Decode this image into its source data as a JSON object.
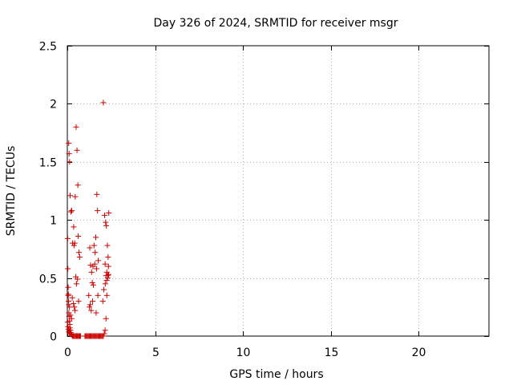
{
  "chart_data": {
    "type": "scatter",
    "title": "Day 326 of 2024, SRMTID for receiver msgr",
    "xlabel": "GPS time / hours",
    "ylabel": "SRMTID / TECUs",
    "xlim": [
      0,
      24
    ],
    "ylim": [
      0,
      2.5
    ],
    "xticks": [
      0,
      5,
      10,
      15,
      20
    ],
    "yticks": [
      0,
      0.5,
      1,
      1.5,
      2,
      2.5
    ],
    "xtick_labels": [
      "0",
      "5",
      "10",
      "15",
      "20"
    ],
    "ytick_labels": [
      "0",
      "0.5",
      "1",
      "1.5",
      "2",
      "2.5"
    ],
    "grid": true,
    "marker": "+",
    "color": "#cc0000",
    "series": [
      {
        "name": "msgr",
        "x": [
          0.02,
          0.03,
          0.05,
          0.06,
          0.07,
          0.08,
          0.09,
          0.1,
          0.12,
          0.14,
          0.15,
          0.18,
          0.2,
          0.22,
          0.25,
          0.3,
          0.32,
          0.35,
          0.4,
          0.45,
          0.5,
          0.52,
          0.55,
          0.58,
          0.6,
          0.65,
          0.68,
          0.7,
          0.72,
          0.75,
          1.0,
          1.05,
          1.1,
          1.15,
          1.2,
          1.25,
          1.3,
          1.35,
          1.4,
          1.45,
          1.5,
          1.55,
          1.6,
          1.65,
          1.7,
          1.75,
          1.8,
          1.85,
          1.9,
          1.95,
          2.0,
          2.05,
          2.1,
          2.15,
          2.2,
          2.25,
          2.3,
          2.35,
          0.08,
          0.1,
          0.13,
          0.16,
          0.2,
          0.25,
          0.3,
          0.38,
          0.45,
          0.5,
          0.55,
          0.6,
          0.62,
          0.66,
          0.7,
          0.05,
          0.12,
          0.18,
          0.24,
          0.42,
          0.48,
          0.58,
          1.28,
          1.32,
          1.38,
          1.42,
          1.48,
          1.52,
          1.58,
          1.62,
          1.68,
          1.72,
          2.12,
          2.18,
          2.22,
          2.28,
          2.32,
          2.05,
          2.15,
          2.25,
          0.02,
          0.04,
          0.06,
          0.09,
          0.11,
          0.14,
          0.28,
          0.35,
          0.4,
          0.44,
          0.64,
          1.22,
          1.26,
          1.36,
          1.46,
          1.56,
          1.66,
          1.76,
          2.08,
          2.16,
          2.24,
          2.3,
          2.34,
          0.36,
          0.52,
          1.3,
          1.44,
          1.64,
          1.74,
          2.02,
          2.2,
          2.36
        ],
        "y": [
          0.84,
          0.58,
          0.42,
          0.36,
          0.3,
          0.27,
          0.2,
          0.17,
          0.13,
          0.1,
          0.07,
          0.05,
          0.03,
          0.02,
          0.01,
          0.0,
          0.0,
          0.0,
          0.0,
          0.0,
          0.0,
          0.0,
          0.0,
          0.0,
          0.0,
          0.0,
          0.0,
          0.0,
          0.0,
          0.0,
          0.0,
          0.0,
          0.0,
          0.0,
          0.0,
          0.0,
          0.0,
          0.0,
          0.0,
          0.0,
          0.0,
          0.0,
          0.0,
          0.0,
          0.0,
          0.0,
          0.0,
          0.0,
          0.0,
          0.0,
          0.0,
          0.0,
          0.02,
          0.05,
          0.15,
          0.35,
          0.5,
          0.53,
          1.66,
          1.57,
          1.5,
          1.21,
          1.07,
          1.08,
          0.8,
          0.78,
          1.2,
          1.8,
          1.6,
          1.3,
          0.86,
          0.72,
          0.68,
          0.35,
          0.25,
          0.18,
          0.15,
          0.8,
          0.51,
          0.49,
          0.76,
          0.61,
          0.55,
          0.46,
          0.44,
          0.78,
          0.72,
          0.85,
          1.22,
          1.08,
          1.04,
          0.98,
          0.95,
          0.78,
          0.68,
          2.01,
          0.62,
          0.55,
          0.12,
          0.08,
          0.06,
          0.04,
          0.03,
          0.02,
          0.33,
          0.28,
          0.25,
          0.22,
          0.3,
          0.35,
          0.25,
          0.22,
          0.6,
          0.62,
          0.58,
          0.65,
          0.4,
          0.45,
          0.48,
          0.52,
          0.6,
          0.94,
          0.45,
          0.27,
          0.3,
          0.2,
          0.35,
          0.3,
          0.52,
          1.06
        ]
      }
    ]
  }
}
